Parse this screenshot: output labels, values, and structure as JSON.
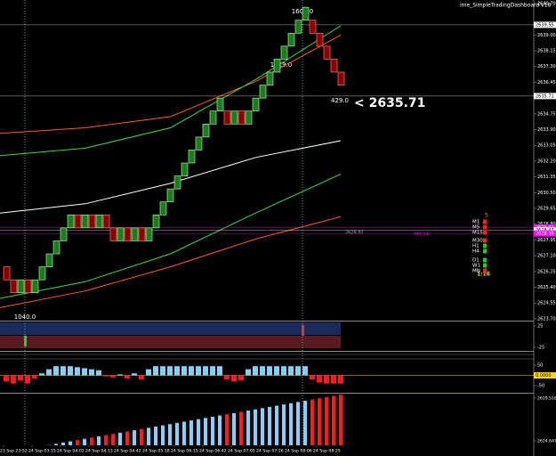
{
  "chart_data": {
    "type": "renko",
    "title": "ime_SimpleTradingDashboard v18",
    "ylim": [
      2623.6,
      2640.89
    ],
    "yticks": [
      {
        "value": 2640.7,
        "label": "2640.70"
      },
      {
        "value": 2639,
        "label": "2639.00"
      },
      2638.15,
      {
        "value": 2637.3,
        "label": "2637.30"
      },
      2636.45,
      2634.75,
      {
        "value": 2633.9,
        "label": "2633.90"
      },
      2633.05,
      {
        "value": 2632.2,
        "label": "2632.20"
      },
      2631.35,
      {
        "value": 2630.5,
        "label": "2630.50"
      },
      2629.65,
      {
        "value": 2628.8,
        "label": "2628.80"
      },
      2627.95,
      {
        "value": 2627.1,
        "label": "2627.10"
      },
      2626.25,
      {
        "value": 2625.4,
        "label": "2625.40"
      },
      2624.55,
      {
        "value": 2623.7,
        "label": "2623.70"
      }
    ],
    "price_markers": [
      {
        "value": 2639.55,
        "label": "2639.55",
        "color": "#ffffff"
      },
      {
        "value": 2635.71,
        "label": "2635.71",
        "color": "#ffffff"
      },
      {
        "value": 2628.62,
        "label": "2628.62",
        "color": "#ff00ff"
      },
      {
        "value": 2628.47,
        "label": "2628.47",
        "color": "#ffffff"
      },
      {
        "value": 2628.3,
        "label": "2628.30",
        "color": "#ff00ff"
      }
    ],
    "categories": [
      "23 Sep 23:52",
      null,
      null,
      null,
      "24 Sep 03:15",
      null,
      null,
      null,
      "24 Sep 04:02",
      null,
      null,
      null,
      "24 Sep 04:13",
      null,
      null,
      null,
      "24 Sep 04:42",
      null,
      null,
      null,
      "24 Sep 05:18",
      null,
      null,
      null,
      "24 Sep 06:15",
      null,
      null,
      null,
      "24 Sep 06:42",
      null,
      null,
      null,
      "24 Sep 07:05",
      null,
      null,
      null,
      "24 Sep 07:26",
      null,
      null,
      null,
      "24 Sep 08:06",
      null,
      null,
      null,
      "24 Sep 08:25",
      null,
      null,
      null
    ],
    "opens": [
      2626.5,
      2625.8,
      2625.1,
      2625.8,
      2625.1,
      2625.8,
      2626.5,
      2627.2,
      2627.9,
      2628.6,
      2629.3,
      2628.6,
      2629.3,
      2628.6,
      2629.3,
      2628.6,
      2627.9,
      2628.6,
      2627.9,
      2628.6,
      2627.9,
      2628.6,
      2629.3,
      2630.0,
      2630.7,
      2631.4,
      2632.1,
      2632.8,
      2633.5,
      2634.2,
      2634.9,
      2634.9,
      2634.2,
      2634.9,
      2634.2,
      2634.9,
      2635.6,
      2636.3,
      2637.0,
      2637.7,
      2638.4,
      2639.1,
      2639.8,
      2639.8,
      2639.1,
      2638.4,
      2637.7,
      2637.0
    ],
    "closes": [
      2625.8,
      2625.1,
      2625.8,
      2625.1,
      2625.8,
      2626.5,
      2627.2,
      2627.9,
      2628.6,
      2629.3,
      2628.6,
      2629.3,
      2628.6,
      2629.3,
      2628.6,
      2627.9,
      2628.6,
      2627.9,
      2628.6,
      2627.9,
      2628.6,
      2629.3,
      2630.0,
      2630.7,
      2631.4,
      2632.1,
      2632.8,
      2633.5,
      2634.2,
      2634.9,
      2635.6,
      2634.2,
      2634.9,
      2634.2,
      2634.9,
      2635.6,
      2636.3,
      2637.0,
      2637.7,
      2638.4,
      2639.1,
      2639.8,
      2640.5,
      2639.1,
      2638.4,
      2637.7,
      2637.0,
      2636.3
    ],
    "up_color": "#1c7d1c",
    "down_color": "#8b0000",
    "ma_lines": [
      {
        "color": "#ff5a1e",
        "values": [
          2633.7,
          2634.0,
          2634.6,
          2636.5,
          2639.0
        ]
      },
      {
        "color": "#3cdc3c",
        "values": [
          2632.5,
          2632.9,
          2634.0,
          2636.6,
          2639.5
        ]
      },
      {
        "color": "#ffffff",
        "values": [
          2629.4,
          2629.9,
          2631.0,
          2632.4,
          2633.3
        ]
      },
      {
        "color": "#3cdc3c",
        "values": [
          2624.8,
          2625.7,
          2627.2,
          2629.4,
          2631.5
        ]
      },
      {
        "color": "#ff5a1e",
        "values": [
          2624.3,
          2625.2,
          2626.5,
          2628.0,
          2629.2
        ]
      }
    ],
    "labels": {
      "peak": "1600.0",
      "mid": "1319.0",
      "last": "429.0",
      "low": "1040.0",
      "current": "< 2635.71",
      "level_name": "M0:34",
      "level_price": "2628.92"
    },
    "momentum": {
      "ylim": [
        -31.25,
        35.4
      ],
      "yticks": [
        25,
        -25
      ]
    },
    "oscillator": {
      "ylim": [
        -84.8,
        115.2
      ],
      "yticks": [
        50,
        -50
      ],
      "marker": {
        "value": 0,
        "label": "0.0000"
      },
      "pos_color": "#87cefa",
      "neg_color": "#ff1a1a",
      "values": [
        -30,
        -40,
        -25,
        -40,
        -15,
        10,
        30,
        45,
        45,
        45,
        40,
        35,
        30,
        25,
        -5,
        -10,
        5,
        -15,
        10,
        -20,
        30,
        45,
        45,
        45,
        45,
        45,
        45,
        45,
        45,
        45,
        45,
        -20,
        -30,
        -25,
        30,
        45,
        45,
        45,
        45,
        45,
        45,
        45,
        45,
        -20,
        -35,
        -40,
        -40,
        -40
      ]
    },
    "volume": {
      "ylim": [
        2622.92,
        2630.02
      ],
      "yticks": [
        {
          "value": 2629.5163,
          "label": "2629.5163"
        },
        {
          "value": 2624.6477,
          "label": "2624.6477"
        }
      ],
      "up_color": "#87cefa",
      "down_color": "#ff1a1a",
      "values": [
        2623.33,
        2623.47,
        2623.61,
        2623.75,
        2623.89,
        2624.03,
        2624.17,
        2624.31,
        2624.45,
        2624.59,
        2624.73,
        2624.87,
        2625.01,
        2625.15,
        2625.29,
        2625.43,
        2625.57,
        2625.71,
        2625.85,
        2625.99,
        2626.13,
        2626.27,
        2626.41,
        2626.55,
        2626.69,
        2626.83,
        2626.97,
        2627.11,
        2627.25,
        2627.39,
        2627.53,
        2627.67,
        2627.81,
        2627.95,
        2628.09,
        2628.23,
        2628.37,
        2628.51,
        2628.65,
        2628.79,
        2628.93,
        2629.07,
        2629.21,
        2629.35,
        2629.49,
        2629.63,
        2629.77,
        2629.91
      ]
    },
    "dashboard": {
      "count": "5",
      "rows": [
        {
          "label": "M1",
          "color": "#ff2020"
        },
        {
          "label": "M5",
          "color": "#ff2020"
        },
        {
          "label": "M15",
          "color": "#ff2020"
        },
        {
          "label": "M30",
          "color": "#ff2020"
        },
        {
          "label": "H1",
          "color": "#20d020"
        },
        {
          "label": "H4",
          "color": "#20d020"
        },
        {
          "label": "D1",
          "color": "#20d020"
        },
        {
          "label": "W1",
          "color": "#20d020"
        },
        {
          "label": "MN",
          "color": "#ff2020"
        }
      ],
      "ratio": "1:16"
    }
  }
}
